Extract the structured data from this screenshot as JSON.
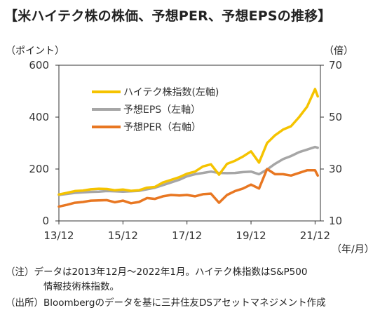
{
  "title": "【米ハイテク株の株価、予想PER、予想EPSの推移】",
  "units": {
    "left": "（ポイント）",
    "right": "（倍）",
    "period": "（年/月）"
  },
  "notes": {
    "line1": "（注）データは2013年12月～2022年1月。ハイテク株指数はS&P500",
    "line2": "情報技術株指数。",
    "line3": "（出所）Bloombergのデータを基に三井住友DSアセットマネジメント作成"
  },
  "colors": {
    "index": "#F5C300",
    "eps": "#A6A6A6",
    "per": "#E87722"
  },
  "chart_data": {
    "type": "line",
    "x_ticks": [
      "13/12",
      "15/12",
      "17/12",
      "19/12",
      "21/12"
    ],
    "y_left": {
      "range": [
        0,
        600
      ],
      "ticks": [
        0,
        200,
        400,
        600
      ]
    },
    "y_right": {
      "range": [
        10,
        70
      ],
      "ticks": [
        10,
        30,
        50,
        70
      ]
    },
    "x": [
      "2013-12",
      "2014-03",
      "2014-06",
      "2014-09",
      "2014-12",
      "2015-03",
      "2015-06",
      "2015-09",
      "2015-12",
      "2016-03",
      "2016-06",
      "2016-09",
      "2016-12",
      "2017-03",
      "2017-06",
      "2017-09",
      "2017-12",
      "2018-03",
      "2018-06",
      "2018-09",
      "2018-12",
      "2019-03",
      "2019-06",
      "2019-09",
      "2019-12",
      "2020-03",
      "2020-06",
      "2020-09",
      "2020-12",
      "2021-03",
      "2021-06",
      "2021-09",
      "2021-12",
      "2022-01"
    ],
    "series": [
      {
        "name": "ハイテク株指数(左軸)",
        "axis": "left",
        "values": [
          102,
          108,
          115,
          117,
          122,
          124,
          123,
          118,
          121,
          116,
          118,
          128,
          131,
          148,
          158,
          168,
          182,
          190,
          210,
          218,
          178,
          220,
          232,
          248,
          268,
          225,
          300,
          330,
          352,
          365,
          400,
          440,
          508,
          480
        ]
      },
      {
        "name": "予想EPS（左軸）",
        "axis": "left",
        "values": [
          100,
          104,
          108,
          110,
          112,
          113,
          115,
          114,
          113,
          114,
          116,
          122,
          128,
          138,
          148,
          158,
          172,
          180,
          185,
          190,
          185,
          184,
          185,
          188,
          190,
          180,
          198,
          220,
          238,
          250,
          265,
          275,
          285,
          282
        ]
      },
      {
        "name": "予想PER（右軸）",
        "axis": "right",
        "values": [
          15.5,
          16.2,
          17.0,
          17.3,
          17.8,
          17.9,
          18.0,
          17.2,
          17.8,
          16.8,
          17.3,
          18.8,
          18.5,
          19.5,
          20.0,
          19.8,
          20.0,
          19.5,
          20.3,
          20.5,
          17.0,
          20.0,
          21.5,
          22.5,
          24.0,
          22.5,
          30.0,
          28.0,
          28.0,
          27.5,
          28.5,
          29.5,
          29.5,
          27.5
        ]
      }
    ],
    "legend": [
      "ハイテク株指数(左軸)",
      "予想EPS（左軸）",
      "予想PER（右軸）"
    ],
    "grid": false
  }
}
